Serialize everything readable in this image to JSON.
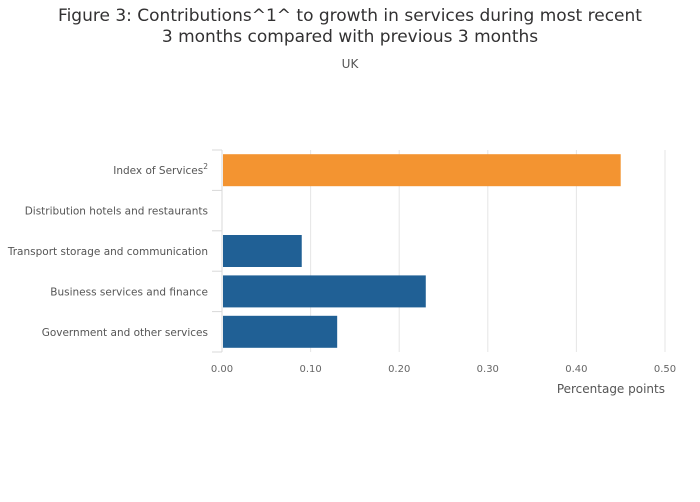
{
  "chart_data": {
    "type": "bar",
    "orientation": "horizontal",
    "title": "Figure 3: Contributions^1^ to growth in services during most recent 3 months compared with previous 3 months",
    "subtitle": "UK",
    "xlabel": "Percentage points",
    "ylabel": "",
    "xlim": [
      0,
      0.5
    ],
    "x_ticks": [
      "0.00",
      "0.10",
      "0.20",
      "0.30",
      "0.40",
      "0.50"
    ],
    "grid": true,
    "categories": [
      {
        "label": "Index of Services",
        "superscript": "2"
      },
      {
        "label": "Distribution hotels and restaurants",
        "superscript": ""
      },
      {
        "label": "Transport storage and communication",
        "superscript": ""
      },
      {
        "label": "Business services and finance",
        "superscript": ""
      },
      {
        "label": "Government and other services",
        "superscript": ""
      }
    ],
    "values": [
      0.45,
      0.0,
      0.09,
      0.23,
      0.13
    ],
    "bar_colors": [
      "#F39431",
      "#206095",
      "#206095",
      "#206095",
      "#206095"
    ]
  }
}
